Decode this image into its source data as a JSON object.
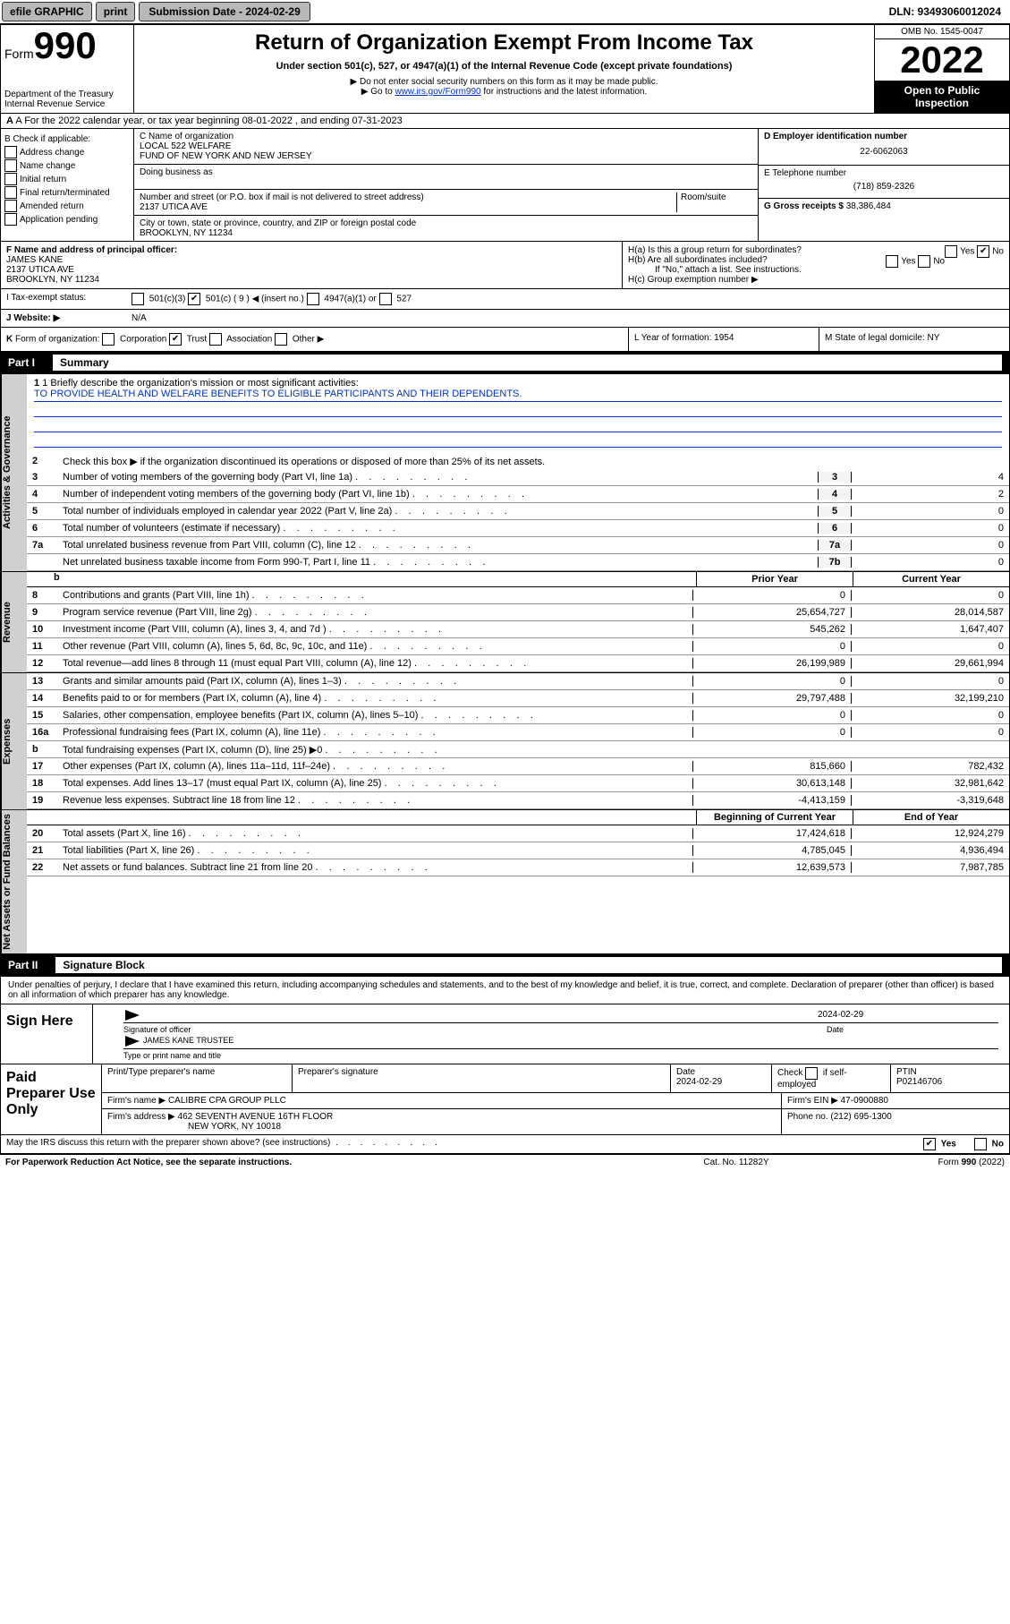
{
  "topbar": {
    "efile": "efile GRAPHIC",
    "print": "print",
    "sub_label": "Submission Date - 2024-02-29",
    "dln": "DLN: 93493060012024"
  },
  "header": {
    "form_word": "Form",
    "form_num": "990",
    "dept1": "Department of the Treasury",
    "dept2": "Internal Revenue Service",
    "title": "Return of Organization Exempt From Income Tax",
    "sub1": "Under section 501(c), 527, or 4947(a)(1) of the Internal Revenue Code (except private foundations)",
    "sub2": "▶ Do not enter social security numbers on this form as it may be made public.",
    "sub3": "▶ Go to www.irs.gov/Form990 for instructions and the latest information.",
    "omb": "OMB No. 1545-0047",
    "year": "2022",
    "open": "Open to Public Inspection"
  },
  "row_a": "A For the 2022 calendar year, or tax year beginning 08-01-2022    , and ending 07-31-2023",
  "col_b": {
    "head": "B Check if applicable:",
    "items": [
      "Address change",
      "Name change",
      "Initial return",
      "Final return/terminated",
      "Amended return",
      "Application pending"
    ]
  },
  "col_c": {
    "name_label": "C Name of organization",
    "name1": "LOCAL 522 WELFARE",
    "name2": "FUND OF NEW YORK AND NEW JERSEY",
    "dba": "Doing business as",
    "addr_label": "Number and street (or P.O. box if mail is not delivered to street address)",
    "room": "Room/suite",
    "addr": "2137 UTICA AVE",
    "city_label": "City or town, state or province, country, and ZIP or foreign postal code",
    "city": "BROOKLYN, NY  11234"
  },
  "col_d": {
    "ein_label": "D Employer identification number",
    "ein": "22-6062063",
    "phone_label": "E Telephone number",
    "phone": "(718) 859-2326",
    "gross_label": "G Gross receipts $",
    "gross": "38,386,484"
  },
  "row_f": {
    "f_label": "F Name and address of principal officer:",
    "name": "JAMES KANE",
    "addr": "2137 UTICA AVE",
    "city": "BROOKLYN, NY  11234"
  },
  "row_h": {
    "ha": "H(a)  Is this a group return for subordinates?",
    "hb": "H(b)  Are all subordinates included?",
    "hb2": "If \"No,\" attach a list. See instructions.",
    "hc": "H(c)  Group exemption number ▶"
  },
  "row_i": {
    "label": "I   Tax-exempt status:",
    "opts": "501(c)(3)     501(c) ( 9 ) ◀ (insert no.)     4947(a)(1) or     527"
  },
  "row_j": {
    "label": "J   Website: ▶",
    "val": "N/A"
  },
  "row_k": "K Form of organization:     Corporation     Trust     Association     Other ▶",
  "row_l": "L Year of formation: 1954",
  "row_m": "M State of legal domicile: NY",
  "part1": {
    "label": "Part I",
    "title": "Summary"
  },
  "mission_label": "1  Briefly describe the organization's mission or most significant activities:",
  "mission": "TO PROVIDE HEALTH AND WELFARE BENEFITS TO ELIGIBLE PARTICIPANTS AND THEIR DEPENDENTS.",
  "line2": "Check this box ▶     if the organization discontinued its operations or disposed of more than 25% of its net assets.",
  "gov_lines": [
    {
      "n": "3",
      "d": "Number of voting members of the governing body (Part VI, line 1a)",
      "b": "3",
      "v": "4"
    },
    {
      "n": "4",
      "d": "Number of independent voting members of the governing body (Part VI, line 1b)",
      "b": "4",
      "v": "2"
    },
    {
      "n": "5",
      "d": "Total number of individuals employed in calendar year 2022 (Part V, line 2a)",
      "b": "5",
      "v": "0"
    },
    {
      "n": "6",
      "d": "Total number of volunteers (estimate if necessary)",
      "b": "6",
      "v": "0"
    },
    {
      "n": "7a",
      "d": "Total unrelated business revenue from Part VIII, column (C), line 12",
      "b": "7a",
      "v": "0"
    },
    {
      "n": "",
      "d": "Net unrelated business taxable income from Form 990-T, Part I, line 11",
      "b": "7b",
      "v": "0"
    }
  ],
  "col_headers": {
    "b": "b",
    "prior": "Prior Year",
    "current": "Current Year"
  },
  "rev_lines": [
    {
      "n": "8",
      "d": "Contributions and grants (Part VIII, line 1h)",
      "p": "0",
      "c": "0"
    },
    {
      "n": "9",
      "d": "Program service revenue (Part VIII, line 2g)",
      "p": "25,654,727",
      "c": "28,014,587"
    },
    {
      "n": "10",
      "d": "Investment income (Part VIII, column (A), lines 3, 4, and 7d )",
      "p": "545,262",
      "c": "1,647,407"
    },
    {
      "n": "11",
      "d": "Other revenue (Part VIII, column (A), lines 5, 6d, 8c, 9c, 10c, and 11e)",
      "p": "0",
      "c": "0"
    },
    {
      "n": "12",
      "d": "Total revenue—add lines 8 through 11 (must equal Part VIII, column (A), line 12)",
      "p": "26,199,989",
      "c": "29,661,994"
    }
  ],
  "exp_lines": [
    {
      "n": "13",
      "d": "Grants and similar amounts paid (Part IX, column (A), lines 1–3)",
      "p": "0",
      "c": "0"
    },
    {
      "n": "14",
      "d": "Benefits paid to or for members (Part IX, column (A), line 4)",
      "p": "29,797,488",
      "c": "32,199,210"
    },
    {
      "n": "15",
      "d": "Salaries, other compensation, employee benefits (Part IX, column (A), lines 5–10)",
      "p": "0",
      "c": "0"
    },
    {
      "n": "16a",
      "d": "Professional fundraising fees (Part IX, column (A), line 11e)",
      "p": "0",
      "c": "0"
    },
    {
      "n": "b",
      "d": "Total fundraising expenses (Part IX, column (D), line 25) ▶0",
      "p": "",
      "c": "",
      "gray": true
    },
    {
      "n": "17",
      "d": "Other expenses (Part IX, column (A), lines 11a–11d, 11f–24e)",
      "p": "815,660",
      "c": "782,432"
    },
    {
      "n": "18",
      "d": "Total expenses. Add lines 13–17 (must equal Part IX, column (A), line 25)",
      "p": "30,613,148",
      "c": "32,981,642"
    },
    {
      "n": "19",
      "d": "Revenue less expenses. Subtract line 18 from line 12",
      "p": "-4,413,159",
      "c": "-3,319,648"
    }
  ],
  "na_headers": {
    "prior": "Beginning of Current Year",
    "current": "End of Year"
  },
  "na_lines": [
    {
      "n": "20",
      "d": "Total assets (Part X, line 16)",
      "p": "17,424,618",
      "c": "12,924,279"
    },
    {
      "n": "21",
      "d": "Total liabilities (Part X, line 26)",
      "p": "4,785,045",
      "c": "4,936,494"
    },
    {
      "n": "22",
      "d": "Net assets or fund balances. Subtract line 21 from line 20",
      "p": "12,639,573",
      "c": "7,987,785"
    }
  ],
  "part2": {
    "label": "Part II",
    "title": "Signature Block"
  },
  "sig_text": "Under penalties of perjury, I declare that I have examined this return, including accompanying schedules and statements, and to the best of my knowledge and belief, it is true, correct, and complete. Declaration of preparer (other than officer) is based on all information of which preparer has any knowledge.",
  "sign_here": "Sign Here",
  "sig_officer": "Signature of officer",
  "sig_date": "2024-02-29",
  "sig_date_label": "Date",
  "sig_name": "JAMES KANE  TRUSTEE",
  "sig_name_label": "Type or print name and title",
  "paid": {
    "label": "Paid Preparer Use Only",
    "h1": "Print/Type preparer's name",
    "h2": "Preparer's signature",
    "h3": "Date",
    "h3v": "2024-02-29",
    "h4": "Check     if self-employed",
    "h5": "PTIN",
    "h5v": "P02146706",
    "firm_label": "Firm's name  ▶",
    "firm": "CALIBRE CPA GROUP PLLC",
    "ein_label": "Firm's EIN ▶",
    "ein": "47-0900880",
    "addr_label": "Firm's address ▶",
    "addr1": "462 SEVENTH AVENUE 16TH FLOOR",
    "addr2": "NEW YORK, NY  10018",
    "phone_label": "Phone no.",
    "phone": "(212) 695-1300"
  },
  "footer_q": "May the IRS discuss this return with the preparer shown above? (see instructions)",
  "footer_yes": "Yes",
  "footer_no": "No",
  "bottom": {
    "l": "For Paperwork Reduction Act Notice, see the separate instructions.",
    "c": "Cat. No. 11282Y",
    "r": "Form 990 (2022)"
  },
  "vtabs": {
    "gov": "Activities & Governance",
    "rev": "Revenue",
    "exp": "Expenses",
    "na": "Net Assets or Fund Balances"
  }
}
